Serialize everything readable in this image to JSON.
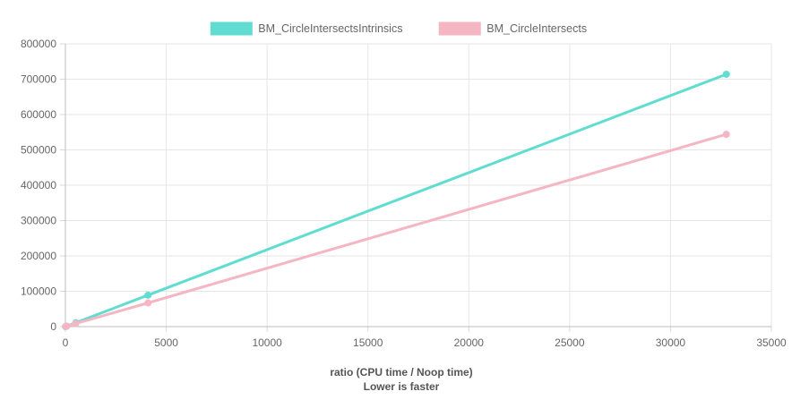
{
  "chart_data": {
    "type": "line",
    "title": "",
    "xlabel": "ratio (CPU time / Noop time)",
    "xlabel_note": "Lower is faster",
    "ylabel": "",
    "xlim": [
      0,
      35000
    ],
    "ylim": [
      0,
      800000
    ],
    "x_ticks": [
      "0",
      "5000",
      "10000",
      "15000",
      "20000",
      "25000",
      "30000",
      "35000"
    ],
    "y_ticks": [
      "0",
      "100000",
      "200000",
      "300000",
      "400000",
      "500000",
      "600000",
      "700000",
      "800000"
    ],
    "grid": true,
    "legend_position": "top-center",
    "series": [
      {
        "name": "BM_CircleIntersectsIntrinsics",
        "color": "#60ddd0",
        "points": [
          {
            "x": 8,
            "y": 200
          },
          {
            "x": 64,
            "y": 1400
          },
          {
            "x": 512,
            "y": 11000
          },
          {
            "x": 4096,
            "y": 89000
          },
          {
            "x": 32768,
            "y": 714000
          }
        ]
      },
      {
        "name": "BM_CircleIntersects",
        "color": "#f4b6c2",
        "points": [
          {
            "x": 8,
            "y": 150
          },
          {
            "x": 64,
            "y": 1100
          },
          {
            "x": 512,
            "y": 8500
          },
          {
            "x": 4096,
            "y": 67000
          },
          {
            "x": 32768,
            "y": 544000
          }
        ]
      }
    ]
  }
}
